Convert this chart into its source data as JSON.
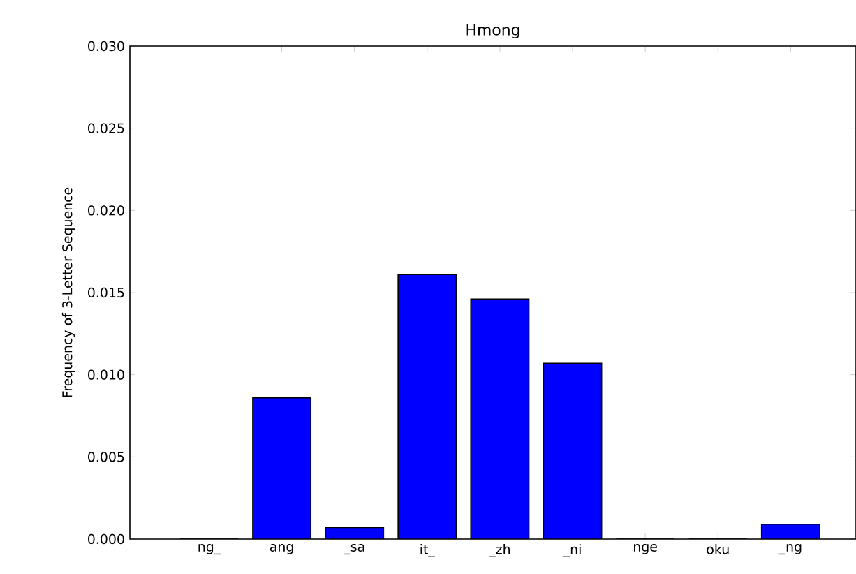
{
  "chart_data": {
    "type": "bar",
    "title": "Hmong",
    "ylabel": "Frequency of 3-Letter Sequence",
    "categories": [
      "ng_",
      "ang",
      "_sa",
      "it_",
      "_zh",
      "_ni",
      "nge",
      "oku",
      "_ng"
    ],
    "values": [
      0,
      0.0086,
      0.0007,
      0.0161,
      0.0146,
      0.0107,
      0,
      0,
      0.0009
    ],
    "color": "#0000ff",
    "ylim": [
      0,
      0.03
    ],
    "yticks": [
      {
        "value": 0,
        "label": "0.000"
      },
      {
        "value": 0.005,
        "label": "0.005"
      },
      {
        "value": 0.01,
        "label": "0.010"
      },
      {
        "value": 0.015,
        "label": "0.015"
      },
      {
        "value": 0.02,
        "label": "0.020"
      },
      {
        "value": 0.025,
        "label": "0.025"
      },
      {
        "value": 0.03,
        "label": "0.030"
      }
    ],
    "grid": false
  }
}
